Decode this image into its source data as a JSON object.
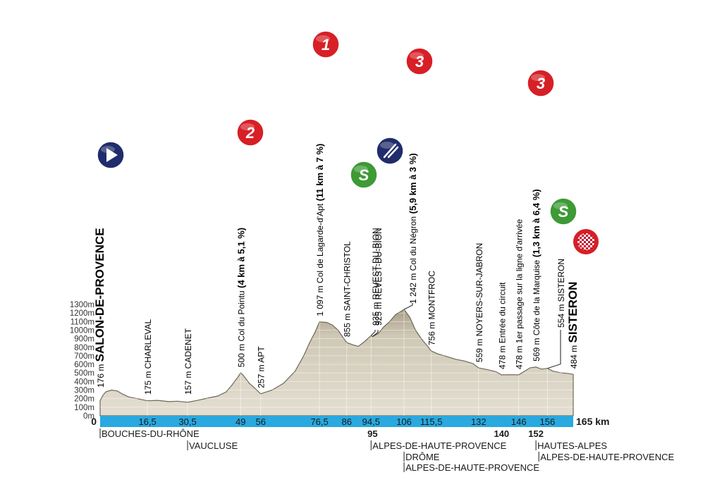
{
  "chart_data": {
    "type": "area",
    "xlabel": "",
    "ylabel": "",
    "unit": "km",
    "xlim": [
      0,
      165
    ],
    "ylim": [
      0,
      1300
    ],
    "yticks": [
      "0m",
      "100m",
      "200m",
      "300m",
      "400m",
      "500m",
      "600m",
      "700m",
      "800m",
      "900m",
      "1000m",
      "1100m",
      "1200m",
      "1300m"
    ],
    "x_labels": [
      {
        "v": 0,
        "t": "0",
        "bold": true
      },
      {
        "v": 16.5,
        "t": "16,5"
      },
      {
        "v": 30.5,
        "t": "30,5"
      },
      {
        "v": 49,
        "t": "49"
      },
      {
        "v": 56,
        "t": "56"
      },
      {
        "v": 76.5,
        "t": "76,5"
      },
      {
        "v": 86,
        "t": "86"
      },
      {
        "v": 94.5,
        "t": "94,5"
      },
      {
        "v": 106,
        "t": "106"
      },
      {
        "v": 115.5,
        "t": "115,5"
      },
      {
        "v": 132,
        "t": "132"
      },
      {
        "v": 146,
        "t": "146"
      },
      {
        "v": 156,
        "t": "156"
      }
    ],
    "end_label": "165 km",
    "below_labels": [
      {
        "v": 95,
        "t": "95"
      },
      {
        "v": 140,
        "t": "140"
      },
      {
        "v": 152,
        "t": "152"
      }
    ],
    "profile": [
      [
        0,
        176
      ],
      [
        1,
        240
      ],
      [
        2,
        280
      ],
      [
        4,
        300
      ],
      [
        6,
        290
      ],
      [
        8,
        250
      ],
      [
        10,
        220
      ],
      [
        13,
        200
      ],
      [
        16.5,
        175
      ],
      [
        20,
        180
      ],
      [
        24,
        165
      ],
      [
        27,
        170
      ],
      [
        30.5,
        157
      ],
      [
        34,
        180
      ],
      [
        38,
        210
      ],
      [
        41,
        230
      ],
      [
        44,
        280
      ],
      [
        46,
        360
      ],
      [
        48,
        450
      ],
      [
        49,
        500
      ],
      [
        50,
        470
      ],
      [
        52,
        380
      ],
      [
        54,
        320
      ],
      [
        56,
        257
      ],
      [
        60,
        300
      ],
      [
        64,
        380
      ],
      [
        68,
        520
      ],
      [
        71,
        700
      ],
      [
        73,
        850
      ],
      [
        75,
        980
      ],
      [
        76.5,
        1097
      ],
      [
        79,
        1090
      ],
      [
        81,
        1060
      ],
      [
        83,
        1000
      ],
      [
        85,
        900
      ],
      [
        86,
        855
      ],
      [
        88,
        830
      ],
      [
        90,
        810
      ],
      [
        92,
        860
      ],
      [
        94.5,
        935
      ],
      [
        95,
        925
      ],
      [
        97,
        960
      ],
      [
        99,
        1040
      ],
      [
        101,
        1100
      ],
      [
        103,
        1180
      ],
      [
        105,
        1220
      ],
      [
        106,
        1242
      ],
      [
        108,
        1150
      ],
      [
        110,
        1000
      ],
      [
        112,
        900
      ],
      [
        114,
        820
      ],
      [
        115.5,
        756
      ],
      [
        118,
        720
      ],
      [
        121,
        690
      ],
      [
        124,
        660
      ],
      [
        127,
        640
      ],
      [
        130,
        610
      ],
      [
        132,
        559
      ],
      [
        135,
        540
      ],
      [
        138,
        515
      ],
      [
        140,
        478
      ],
      [
        143,
        480
      ],
      [
        146,
        478
      ],
      [
        148,
        520
      ],
      [
        150,
        560
      ],
      [
        152,
        569
      ],
      [
        154,
        545
      ],
      [
        156,
        554
      ],
      [
        158,
        520
      ],
      [
        161,
        500
      ],
      [
        163,
        495
      ],
      [
        165,
        484
      ]
    ],
    "annotations": [
      {
        "v": 0,
        "alt": "176 m",
        "name": "SALON-DE-PROVENCE",
        "size": "big"
      },
      {
        "v": 16.5,
        "alt": "175 m",
        "name": "CHARLEVAL"
      },
      {
        "v": 30.5,
        "alt": "157 m",
        "name": "CADENET"
      },
      {
        "v": 49,
        "alt": "500 m",
        "name": "Col du Pointu",
        "extra": "(4 km à 5,1 %)"
      },
      {
        "v": 56,
        "alt": "257 m",
        "name": "APT"
      },
      {
        "v": 76.5,
        "alt": "1 097 m",
        "name": "Col de Lagarde-d'Apt",
        "extra": "(11 km à 7 %)"
      },
      {
        "v": 86,
        "alt": "855 m",
        "name": "SAINT-CHRISTOL"
      },
      {
        "v": 94.5,
        "alt": "935 m",
        "name": "REVEST-DU-BION"
      },
      {
        "v": 95,
        "alt": "925 m",
        "name": "REVEST-DU-BION"
      },
      {
        "v": 106,
        "alt": "1 242 m",
        "name": "Col du Négron",
        "extra": "(5,9 km à 3 %)"
      },
      {
        "v": 115.5,
        "alt": "756 m",
        "name": "MONTFROC"
      },
      {
        "v": 132,
        "alt": "559 m",
        "name": "NOYERS-SUR-JABRON"
      },
      {
        "v": 140,
        "alt": "478 m",
        "name": "Entrée du circuit"
      },
      {
        "v": 146,
        "alt": "478 m",
        "name": "1er passage sur la ligne d'arrivée"
      },
      {
        "v": 152,
        "alt": "569 m",
        "name": "Côte de la Marquise",
        "extra": "(1,3 km à 6,4 %)"
      },
      {
        "v": 156,
        "alt": "554 m",
        "name": "SISTERON"
      },
      {
        "v": 165,
        "alt": "484 m",
        "name": "SISTERON",
        "size": "big"
      }
    ],
    "badges": [
      {
        "v": 0,
        "kind": "start"
      },
      {
        "v": 49,
        "kind": "climb",
        "cat": "2"
      },
      {
        "v": 76.5,
        "kind": "climb",
        "cat": "1"
      },
      {
        "v": 94.5,
        "kind": "sprint",
        "cat": "S"
      },
      {
        "v": 95,
        "kind": "feed"
      },
      {
        "v": 106,
        "kind": "climb",
        "cat": "3"
      },
      {
        "v": 152,
        "kind": "climb",
        "cat": "3"
      },
      {
        "v": 156,
        "kind": "sprint",
        "cat": "S"
      },
      {
        "v": 165,
        "kind": "finish"
      }
    ],
    "departments": [
      {
        "v": 0,
        "t": "BOUCHES-DU-RHÔNE",
        "row": 0
      },
      {
        "v": 30.5,
        "t": "VAUCLUSE",
        "row": 1
      },
      {
        "v": 94.5,
        "t": "ALPES-DE-HAUTE-PROVENCE",
        "row": 1
      },
      {
        "v": 106,
        "t": "DRÔME",
        "row": 2
      },
      {
        "v": 106,
        "t": "ALPES-DE-HAUTE-PROVENCE",
        "row": 3
      },
      {
        "v": 152,
        "t": "HAUTES-ALPES",
        "row": 1
      },
      {
        "v": 153,
        "t": "ALPES-DE-HAUTE-PROVENCE",
        "row": 2
      }
    ],
    "colors": {
      "terrain": "#cfc8b6",
      "terrain_dark": "#b6ae99",
      "axis_bar": "#29a9e0",
      "climb_badge": "#d71f26",
      "sprint_badge": "#3d9a35",
      "navy_badge": "#202c6b"
    }
  }
}
